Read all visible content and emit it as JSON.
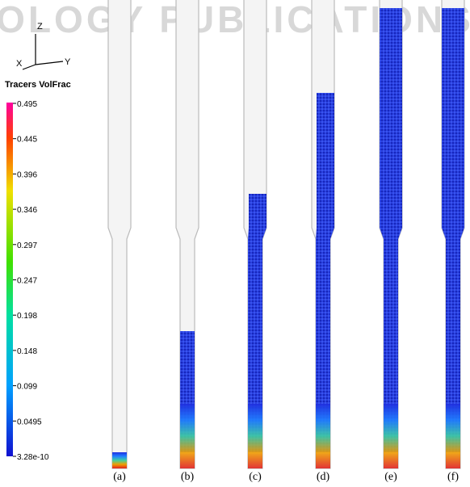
{
  "watermark": "OLOGY PUBLICATIONS",
  "axes_icon": {
    "z": "Z",
    "x": "X",
    "y": "Y"
  },
  "colorbar": {
    "title": "Tracers VolFrac",
    "ticks": [
      "0.495",
      "0.445",
      "0.396",
      "0.346",
      "0.297",
      "0.247",
      "0.198",
      "0.148",
      "0.099",
      "0.0495",
      "3.28e-10"
    ]
  },
  "panels": [
    "(a)",
    "(b)",
    "(c)",
    "(d)",
    "(e)",
    "(f)"
  ]
}
